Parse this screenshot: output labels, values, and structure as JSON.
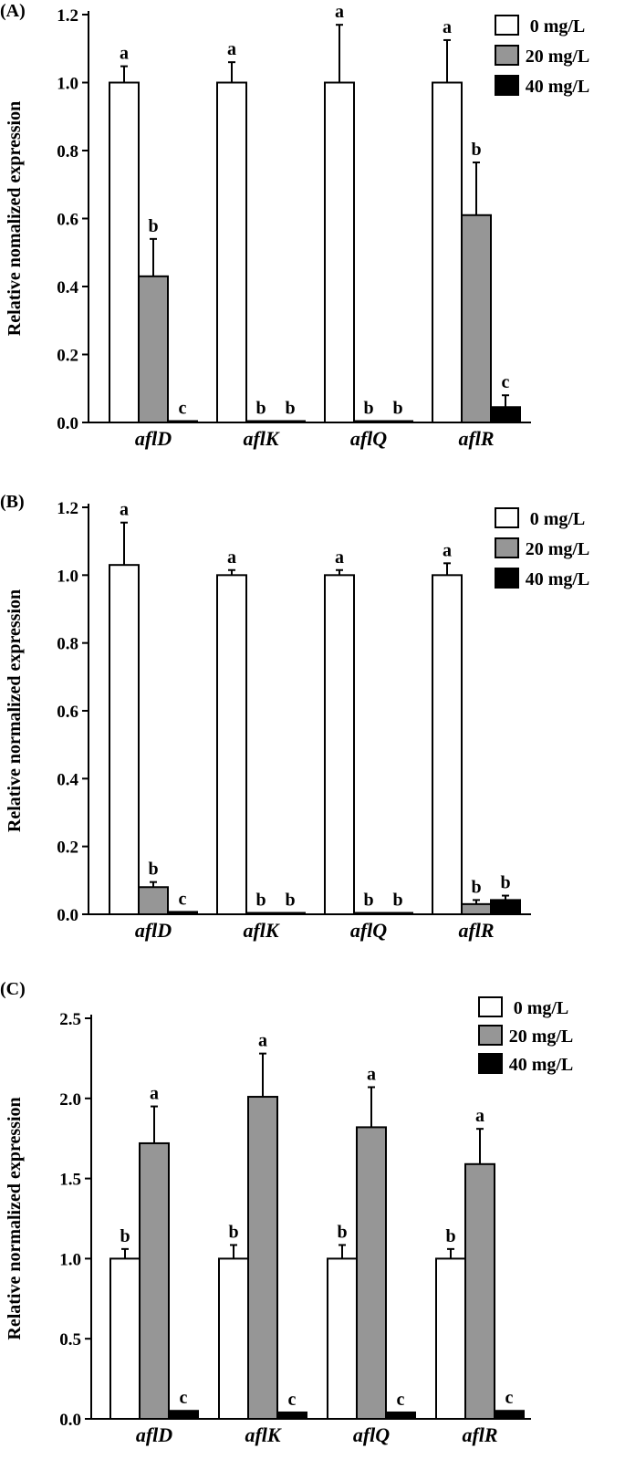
{
  "chart_data": [
    {
      "type": "bar",
      "panel_label": "(A)",
      "categories": [
        "aflD",
        "aflK",
        "aflQ",
        "aflR"
      ],
      "series": [
        {
          "name": "0 mg/L",
          "color": "#ffffff",
          "values": [
            1.0,
            1.0,
            1.0,
            1.0
          ],
          "errors": [
            0.048,
            0.06,
            0.17,
            0.125
          ],
          "letters": [
            "a",
            "a",
            "a",
            "a"
          ]
        },
        {
          "name": "20 mg/L",
          "color": "#969696",
          "values": [
            0.43,
            0.0,
            0.0,
            0.61
          ],
          "errors": [
            0.11,
            0.0,
            0.0,
            0.155
          ],
          "letters": [
            "b",
            "b",
            "b",
            "b"
          ]
        },
        {
          "name": "40 mg/L",
          "color": "#000000",
          "values": [
            0.0,
            0.0,
            0.0,
            0.045
          ],
          "errors": [
            0.0,
            0.0,
            0.0,
            0.035
          ],
          "letters": [
            "c",
            "b",
            "b",
            "c"
          ]
        }
      ],
      "ylabel": "Relative nomalized expression",
      "ylim": [
        0,
        1.2
      ],
      "yticks": [
        "0.0",
        "0.2",
        "0.4",
        "0.6",
        "0.8",
        "1.0",
        "1.2"
      ],
      "legend_position": "top-right",
      "grid": false
    },
    {
      "type": "bar",
      "panel_label": "(B)",
      "categories": [
        "aflD",
        "aflK",
        "aflQ",
        "aflR"
      ],
      "series": [
        {
          "name": "0 mg/L",
          "color": "#ffffff",
          "values": [
            1.03,
            1.0,
            1.0,
            1.0
          ],
          "errors": [
            0.125,
            0.015,
            0.015,
            0.035
          ],
          "letters": [
            "a",
            "a",
            "a",
            "a"
          ]
        },
        {
          "name": "20 mg/L",
          "color": "#969696",
          "values": [
            0.08,
            0.0,
            0.0,
            0.03
          ],
          "errors": [
            0.015,
            0.0,
            0.0,
            0.012
          ],
          "letters": [
            "b",
            "b",
            "b",
            "b"
          ]
        },
        {
          "name": "40 mg/L",
          "color": "#000000",
          "values": [
            0.007,
            0.0,
            0.0,
            0.042
          ],
          "errors": [
            0.0,
            0.0,
            0.0,
            0.013
          ],
          "letters": [
            "c",
            "b",
            "b",
            "b"
          ]
        }
      ],
      "ylabel": "Relative normalized expression",
      "ylim": [
        0,
        1.2
      ],
      "yticks": [
        "0.0",
        "0.2",
        "0.4",
        "0.6",
        "0.8",
        "1.0",
        "1.2"
      ],
      "legend_position": "top-right",
      "grid": false
    },
    {
      "type": "bar",
      "panel_label": "(C)",
      "categories": [
        "aflD",
        "aflK",
        "aflQ",
        "aflR"
      ],
      "series": [
        {
          "name": "0 mg/L",
          "legend_label": "0  mg/L",
          "color": "#ffffff",
          "values": [
            1.0,
            1.0,
            1.0,
            1.0
          ],
          "errors": [
            0.06,
            0.085,
            0.085,
            0.06
          ],
          "letters": [
            "b",
            "b",
            "b",
            "b"
          ]
        },
        {
          "name": "20 mg/L",
          "color": "#969696",
          "values": [
            1.72,
            2.01,
            1.82,
            1.59
          ],
          "errors": [
            0.23,
            0.27,
            0.25,
            0.22
          ],
          "letters": [
            "a",
            "a",
            "a",
            "a"
          ]
        },
        {
          "name": "40 mg/L",
          "color": "#000000",
          "values": [
            0.05,
            0.04,
            0.04,
            0.05
          ],
          "errors": [
            0.0,
            0.0,
            0.0,
            0.0
          ],
          "letters": [
            "c",
            "c",
            "c",
            "c"
          ]
        }
      ],
      "ylabel": "Relative normalized expression",
      "ylim": [
        0,
        2.5
      ],
      "yticks": [
        "0.0",
        "0.5",
        "1.0",
        "1.5",
        "2.0",
        "2.5"
      ],
      "legend_position": "top-right",
      "grid": false
    }
  ]
}
